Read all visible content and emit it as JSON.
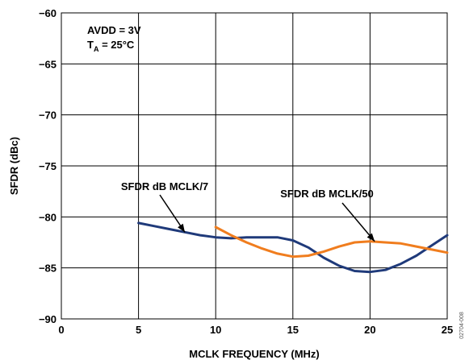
{
  "chart_data": {
    "type": "line",
    "xlabel": "MCLK FREQUENCY (MHz)",
    "ylabel": "SFDR (dBc)",
    "xlim": [
      0,
      25
    ],
    "ylim": [
      -90,
      -60
    ],
    "x_ticks": [
      "0",
      "5",
      "10",
      "15",
      "20",
      "25"
    ],
    "y_ticks": [
      "−60",
      "−65",
      "−70",
      "−75",
      "−80",
      "−85",
      "−90"
    ],
    "grid": true,
    "conditions": {
      "line1": "AVDD = 3V",
      "line2_main": "T",
      "line2_sub": "A",
      "line2_rest": " = 25°C"
    },
    "series": [
      {
        "name": "SFDR dB MCLK/7",
        "color": "#1f3a7a",
        "points": [
          [
            5,
            -80.6
          ],
          [
            6,
            -80.9
          ],
          [
            7,
            -81.2
          ],
          [
            8,
            -81.5
          ],
          [
            9,
            -81.8
          ],
          [
            10,
            -82.0
          ],
          [
            11,
            -82.1
          ],
          [
            12,
            -82.0
          ],
          [
            13,
            -82.0
          ],
          [
            14,
            -82.0
          ],
          [
            15,
            -82.3
          ],
          [
            16,
            -83.0
          ],
          [
            17,
            -84.0
          ],
          [
            18,
            -84.8
          ],
          [
            19,
            -85.3
          ],
          [
            20,
            -85.4
          ],
          [
            21,
            -85.2
          ],
          [
            22,
            -84.6
          ],
          [
            23,
            -83.8
          ],
          [
            24,
            -82.8
          ],
          [
            25,
            -81.8
          ]
        ]
      },
      {
        "name": "SFDR dB MCLK/50",
        "color": "#f07d1e",
        "points": [
          [
            10,
            -81.0
          ],
          [
            11,
            -81.8
          ],
          [
            12,
            -82.5
          ],
          [
            13,
            -83.1
          ],
          [
            14,
            -83.6
          ],
          [
            15,
            -83.9
          ],
          [
            16,
            -83.8
          ],
          [
            17,
            -83.4
          ],
          [
            18,
            -82.9
          ],
          [
            19,
            -82.5
          ],
          [
            20,
            -82.4
          ],
          [
            21,
            -82.5
          ],
          [
            22,
            -82.6
          ],
          [
            23,
            -82.9
          ],
          [
            24,
            -83.2
          ],
          [
            25,
            -83.5
          ]
        ]
      }
    ],
    "annotations": [
      {
        "text": "SFDR dB MCLK/7",
        "series": 0,
        "arrow_to": [
          8,
          -81.5
        ]
      },
      {
        "text": "SFDR dB MCLK/50",
        "series": 1,
        "arrow_to": [
          20.3,
          -82.4
        ]
      }
    ],
    "doc_id": "02704-008"
  }
}
